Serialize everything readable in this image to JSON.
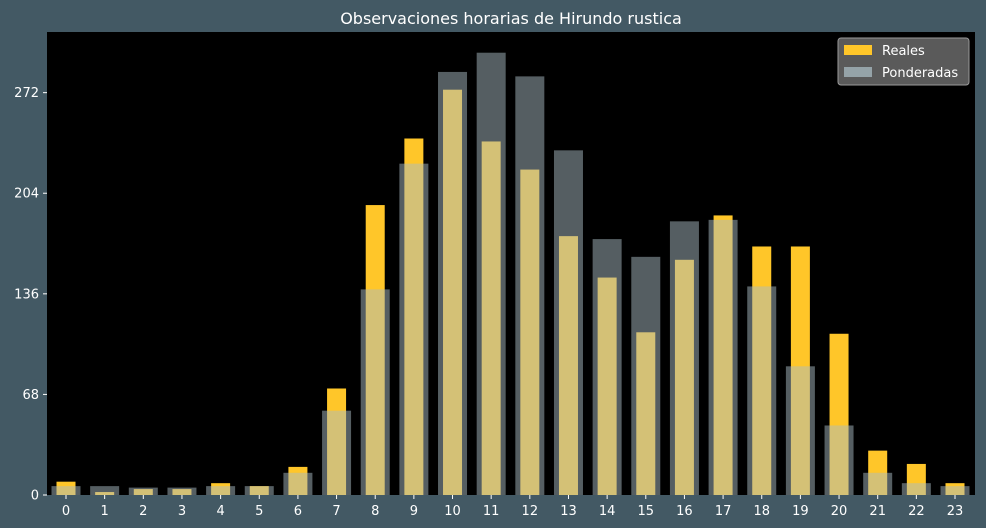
{
  "chart_data": {
    "type": "bar",
    "title": "Observaciones horarias de Hirundo rustica",
    "xlabel": "",
    "ylabel": "",
    "categories": [
      "0",
      "1",
      "2",
      "3",
      "4",
      "5",
      "6",
      "7",
      "8",
      "9",
      "10",
      "11",
      "12",
      "13",
      "14",
      "15",
      "16",
      "17",
      "18",
      "19",
      "20",
      "21",
      "22",
      "23"
    ],
    "yticks": [
      "0",
      "68",
      "136",
      "204",
      "272"
    ],
    "ylim": [
      0,
      313
    ],
    "grid": false,
    "legend": "top-right",
    "series": [
      {
        "name": "Reales",
        "color": "#FFC629",
        "values": [
          9,
          2,
          4,
          4,
          8,
          6,
          19,
          72,
          196,
          241,
          274,
          239,
          220,
          175,
          147,
          110,
          159,
          189,
          168,
          168,
          109,
          30,
          21,
          8
        ]
      },
      {
        "name": "Ponderadas",
        "color": "#A9BCC3",
        "values": [
          6,
          6,
          5,
          5,
          6,
          6,
          15,
          57,
          139,
          224,
          286,
          299,
          283,
          233,
          173,
          161,
          185,
          186,
          141,
          87,
          47,
          15,
          8,
          6
        ]
      }
    ],
    "background": "#000000",
    "figure_background": "#435964"
  }
}
